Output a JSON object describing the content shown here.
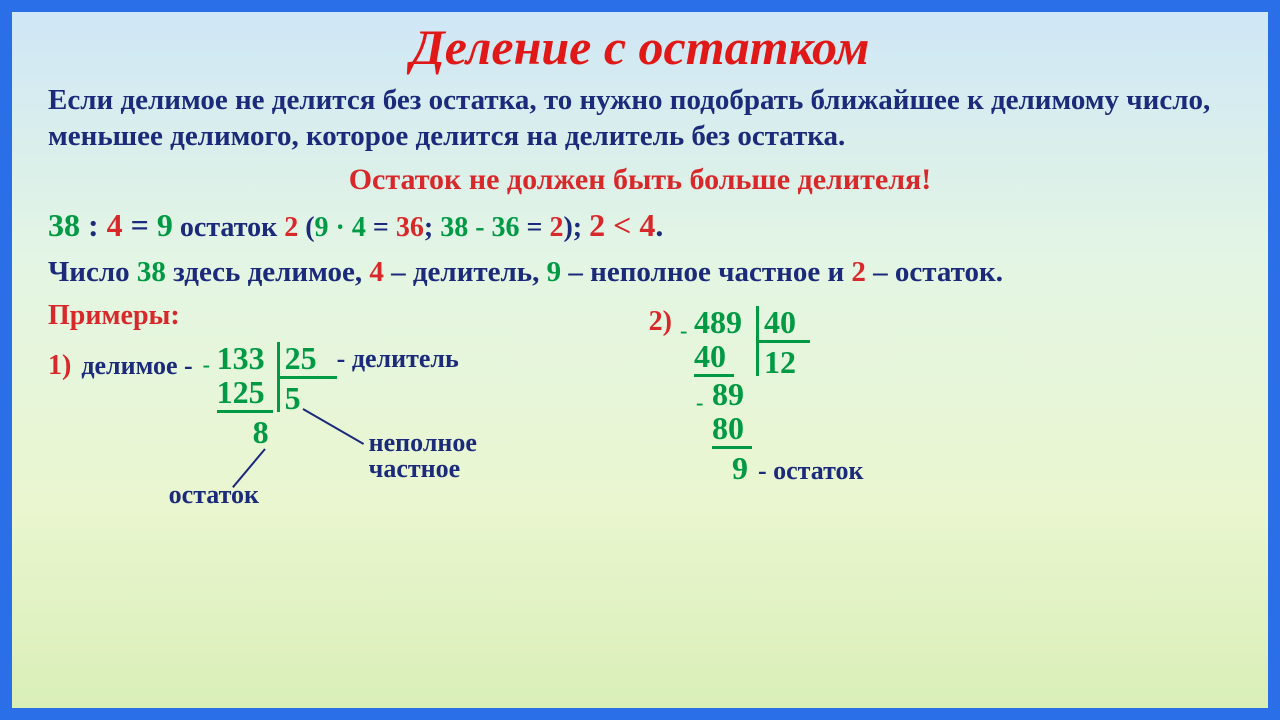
{
  "title": {
    "text": "Деление с остатком",
    "color": "#e01818",
    "fontsize": 50,
    "weight": "bold",
    "style": "italic"
  },
  "rule": {
    "text": "Если делимое не делится без остатка, то нужно подобрать ближайшее к делимому число, меньшее делимого, которое делится на делитель без остатка.",
    "color": "#1b2a7a",
    "fontsize": 29,
    "weight": "bold",
    "lineheight": 1.25
  },
  "warning": {
    "text": "Остаток не должен быть больше делителя!",
    "color": "#d9282a",
    "fontsize": 30,
    "weight": "bold"
  },
  "equation": {
    "fontsize": 32,
    "parts": [
      {
        "text": "38",
        "color": "#009944",
        "weight": "bold"
      },
      {
        "text": " : ",
        "color": "#1b2a7a",
        "weight": "bold"
      },
      {
        "text": "4",
        "color": "#d9282a",
        "weight": "bold"
      },
      {
        "text": " = ",
        "color": "#1b2a7a",
        "weight": "bold"
      },
      {
        "text": "9",
        "color": "#009944",
        "weight": "bold"
      },
      {
        "text": "   остаток ",
        "color": "#1b2a7a",
        "weight": "bold",
        "size": 28
      },
      {
        "text": "2 ",
        "color": "#d9282a",
        "weight": "bold",
        "size": 28
      },
      {
        "text": "(",
        "color": "#1b2a7a",
        "weight": "bold",
        "size": 28
      },
      {
        "text": "9 · 4",
        "color": "#009944",
        "weight": "bold",
        "size": 28
      },
      {
        "text": " = ",
        "color": "#1b2a7a",
        "weight": "bold",
        "size": 28
      },
      {
        "text": "36",
        "color": "#d9282a",
        "weight": "bold",
        "size": 28
      },
      {
        "text": "; ",
        "color": "#1b2a7a",
        "weight": "bold",
        "size": 28
      },
      {
        "text": "38 - 36",
        "color": "#009944",
        "weight": "bold",
        "size": 28
      },
      {
        "text": " = ",
        "color": "#1b2a7a",
        "weight": "bold",
        "size": 28
      },
      {
        "text": "2",
        "color": "#d9282a",
        "weight": "bold",
        "size": 28
      },
      {
        "text": ");  ",
        "color": "#1b2a7a",
        "weight": "bold",
        "size": 28
      },
      {
        "text": "2 < 4",
        "color": "#d9282a",
        "weight": "bold"
      },
      {
        "text": ".",
        "color": "#1b2a7a",
        "weight": "bold"
      }
    ]
  },
  "explain": {
    "fontsize": 29,
    "parts": [
      {
        "text": "Число ",
        "color": "#1b2a7a",
        "weight": "bold"
      },
      {
        "text": "38",
        "color": "#009944",
        "weight": "bold"
      },
      {
        "text": " здесь делимое, ",
        "color": "#1b2a7a",
        "weight": "bold"
      },
      {
        "text": "4",
        "color": "#d9282a",
        "weight": "bold"
      },
      {
        "text": " – делитель, ",
        "color": "#1b2a7a",
        "weight": "bold"
      },
      {
        "text": "9",
        "color": "#009944",
        "weight": "bold"
      },
      {
        "text": " – неполное частное и ",
        "color": "#1b2a7a",
        "weight": "bold"
      },
      {
        "text": "2",
        "color": "#d9282a",
        "weight": "bold"
      },
      {
        "text": " – остаток.",
        "color": "#1b2a7a",
        "weight": "bold"
      }
    ]
  },
  "examples_label": {
    "text": "Примеры:",
    "color": "#d9282a",
    "fontsize": 28,
    "weight": "bold"
  },
  "ex1": {
    "num_label": "1)",
    "num_color": "#d9282a",
    "dividend_label": "делимое -",
    "divisor_label": "- делитель",
    "quotient_label": "неполное\nчастное",
    "remainder_label": "остаток",
    "dividend": "133",
    "divisor": "25",
    "sub1": "125",
    "quotient": "5",
    "remainder": "8",
    "fontsize_num": 32,
    "fontsize_lbl": 26
  },
  "ex2": {
    "num_label": "2)",
    "num_color": "#d9282a",
    "dividend": "489",
    "divisor": "40",
    "q": "12",
    "s1": "40",
    "r1": "89",
    "s2": "80",
    "remainder": "9",
    "remainder_label": "- остаток",
    "fontsize_num": 32,
    "fontsize_lbl": 26
  }
}
